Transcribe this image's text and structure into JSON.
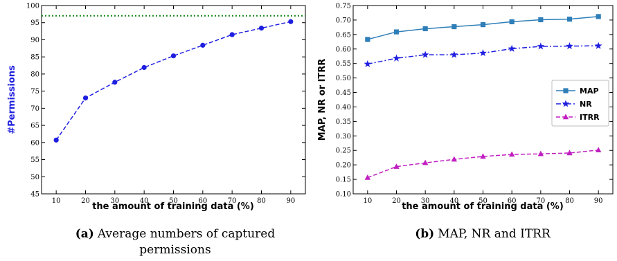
{
  "chart_data": [
    {
      "type": "line",
      "categories": [
        10,
        20,
        30,
        40,
        50,
        60,
        70,
        80,
        90
      ],
      "series": [
        {
          "values": [
            60.7,
            73.0,
            77.6,
            81.9,
            85.3,
            88.4,
            91.5,
            93.4,
            95.3
          ],
          "color": "#1f1fe0",
          "style": "dashed",
          "marker": "circle"
        }
      ],
      "reference_line": {
        "y": 97,
        "color": "#1e8c1e",
        "style": "dotted"
      },
      "xlabel": "the amount of training data (%)",
      "ylabel": "#Permissions",
      "ylim": [
        45,
        100
      ],
      "yticks": [
        45,
        50,
        55,
        60,
        65,
        70,
        75,
        80,
        85,
        90,
        95,
        100
      ],
      "caption_label": "(a)",
      "caption_line1": "Average numbers of captured",
      "caption_line2": "permissions"
    },
    {
      "type": "line",
      "categories": [
        10,
        20,
        30,
        40,
        50,
        60,
        70,
        80,
        90
      ],
      "series": [
        {
          "name": "MAP",
          "values": [
            0.633,
            0.659,
            0.67,
            0.677,
            0.684,
            0.694,
            0.701,
            0.703,
            0.712
          ],
          "color": "#2e7eb8",
          "style": "solid",
          "marker": "square"
        },
        {
          "name": "NR",
          "values": [
            0.548,
            0.568,
            0.58,
            0.58,
            0.586,
            0.601,
            0.609,
            0.61,
            0.611
          ],
          "color": "#1f1fe0",
          "style": "dashdot",
          "marker": "star"
        },
        {
          "name": "ITRR",
          "values": [
            0.156,
            0.194,
            0.207,
            0.219,
            0.229,
            0.236,
            0.238,
            0.241,
            0.251
          ],
          "color": "#c01ec0",
          "style": "dashed",
          "marker": "triangle"
        }
      ],
      "xlabel": "the amount of training data (%)",
      "ylabel": "MAP, NR or ITRR",
      "ylim": [
        0.1,
        0.75
      ],
      "yticks": [
        "0.10",
        "0.15",
        "0.20",
        "0.25",
        "0.30",
        "0.35",
        "0.40",
        "0.45",
        "0.50",
        "0.55",
        "0.60",
        "0.65",
        "0.70",
        "0.75"
      ],
      "legend_position": "center-right",
      "caption_label": "(b)",
      "caption_line1": "MAP, NR and ITRR"
    }
  ]
}
